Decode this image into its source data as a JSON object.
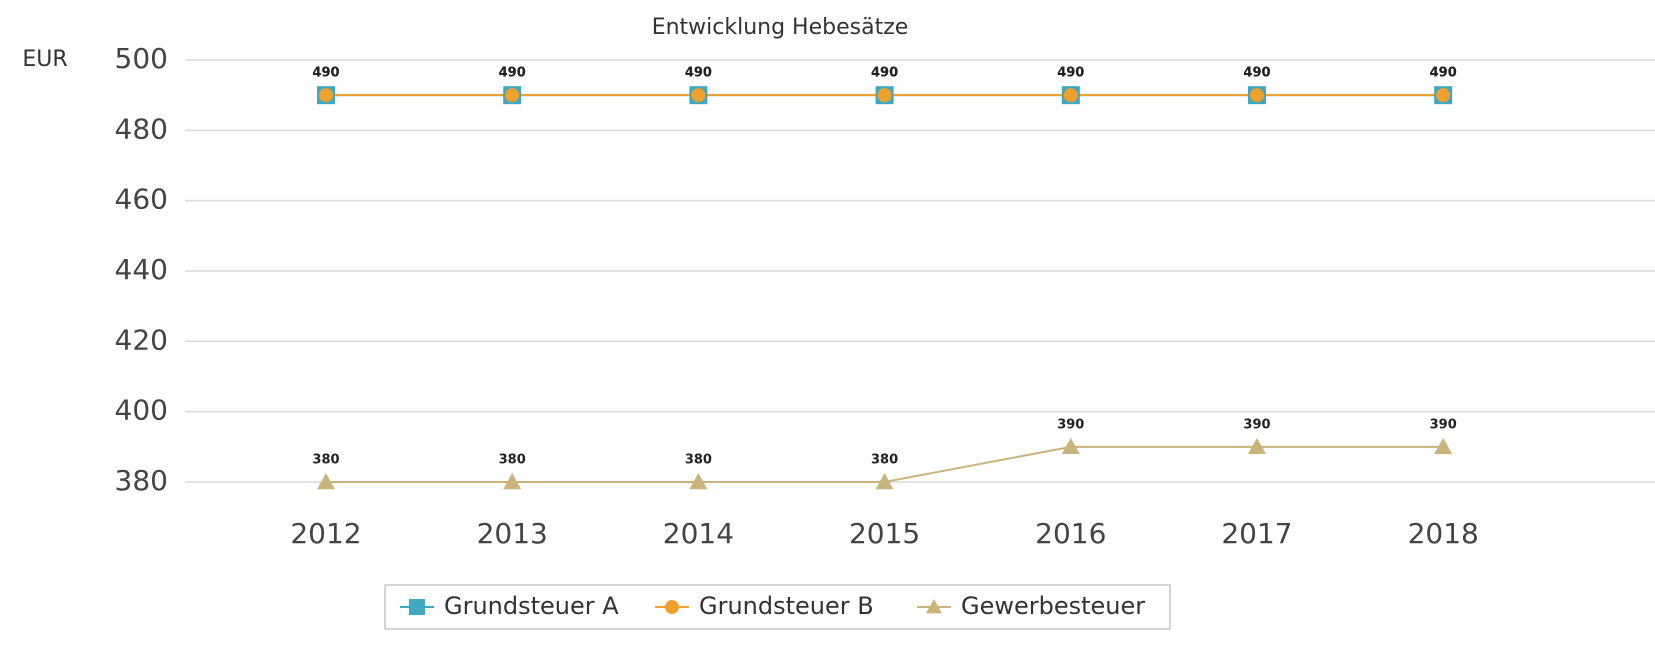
{
  "chart_data": {
    "type": "line",
    "title": "Entwicklung Hebesätze",
    "y_label": "EUR",
    "categories": [
      "2012",
      "2013",
      "2014",
      "2015",
      "2016",
      "2017",
      "2018"
    ],
    "series": [
      {
        "name": "Grundsteuer A",
        "color": "#3fa9c2",
        "marker": "square",
        "values": [
          490,
          490,
          490,
          490,
          490,
          490,
          490
        ]
      },
      {
        "name": "Grundsteuer B",
        "color": "#f0a02c",
        "marker": "circle",
        "values": [
          490,
          490,
          490,
          490,
          490,
          490,
          490
        ]
      },
      {
        "name": "Gewerbesteuer",
        "color": "#c9b57c",
        "marker": "triangle",
        "values": [
          380,
          380,
          380,
          380,
          390,
          390,
          390
        ]
      }
    ],
    "ylim": [
      380,
      500
    ],
    "yticks": [
      380,
      400,
      420,
      440,
      460,
      480,
      500
    ],
    "grid": true,
    "legend": "bottom"
  }
}
